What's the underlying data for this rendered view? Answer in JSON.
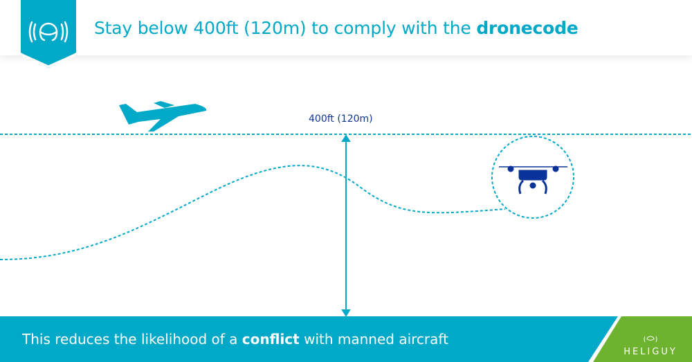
{
  "header": {
    "title_prefix": "Stay below 400ft (120m) to comply with the ",
    "title_bold": "dronecode"
  },
  "diagram": {
    "altitude_label": "400ft (120m)"
  },
  "footer": {
    "text_prefix": "This reduces the likelihood of a ",
    "text_bold": "conflict",
    "text_suffix": " with manned aircraft"
  },
  "brand": {
    "name": "HELIGUY"
  },
  "colors": {
    "primary": "#00a9c8",
    "drone": "#0a3399",
    "label": "#13359a",
    "green": "#6db32f"
  },
  "icons": [
    "heliguy-signal-logo-icon",
    "airplane-icon",
    "drone-icon"
  ]
}
